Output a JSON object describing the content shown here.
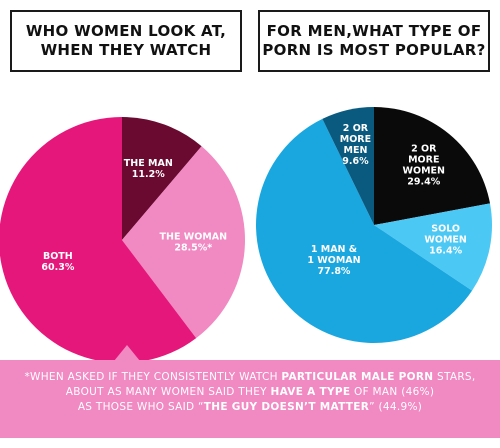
{
  "titles": {
    "left": [
      "WHO WOMEN LOOK AT,",
      "WHEN THEY WATCH"
    ],
    "right": [
      "FOR MEN,WHAT TYPE OF",
      "PORN IS MOST POPULAR?"
    ]
  },
  "chart_data": [
    {
      "type": "pie",
      "title": "WHO WOMEN LOOK AT, WHEN THEY WATCH",
      "slices": [
        {
          "label": [
            "THE MAN"
          ],
          "value": 11.2,
          "value_label": "11.2%",
          "color": "#6b0a30"
        },
        {
          "label": [
            "THE WOMAN"
          ],
          "value": 28.5,
          "value_label": "28.5%*",
          "color": "#f189c2"
        },
        {
          "label": [
            "BOTH"
          ],
          "value": 60.3,
          "value_label": "60.3%",
          "color": "#e6177b"
        }
      ]
    },
    {
      "type": "pie",
      "title": "FOR MEN,WHAT TYPE OF PORN IS MOST POPULAR?",
      "slices": [
        {
          "label": [
            "2 OR",
            "MORE",
            "WOMEN"
          ],
          "value": 29.4,
          "value_label": "29.4%",
          "color": "#0a0a0a"
        },
        {
          "label": [
            "SOLO",
            "WOMEN"
          ],
          "value": 16.4,
          "value_label": "16.4%",
          "color": "#4cc8f5"
        },
        {
          "label": [
            "1 MAN &",
            "1 WOMAN"
          ],
          "value": 77.8,
          "value_label": "77.8%",
          "color": "#1aa7e0"
        },
        {
          "label": [
            "2 OR",
            "MORE",
            "MEN"
          ],
          "value": 9.6,
          "value_label": "9.6%",
          "color": "#0a5a80"
        }
      ]
    }
  ],
  "note": {
    "line1_a": "*WHEN ASKED IF THEY CONSISTENTLY WATCH ",
    "line1_b": "PARTICULAR MALE PORN",
    "line1_c": " STARS,",
    "line2_a": "ABOUT AS MANY WOMEN SAID THEY ",
    "line2_b": "HAVE A TYPE",
    "line2_c": " OF MAN (46%)",
    "line3_a": "AS THOSE WHO SAID “",
    "line3_b": "THE GUY DOESN’T MATTER",
    "line3_c": "” (44.9%)"
  }
}
